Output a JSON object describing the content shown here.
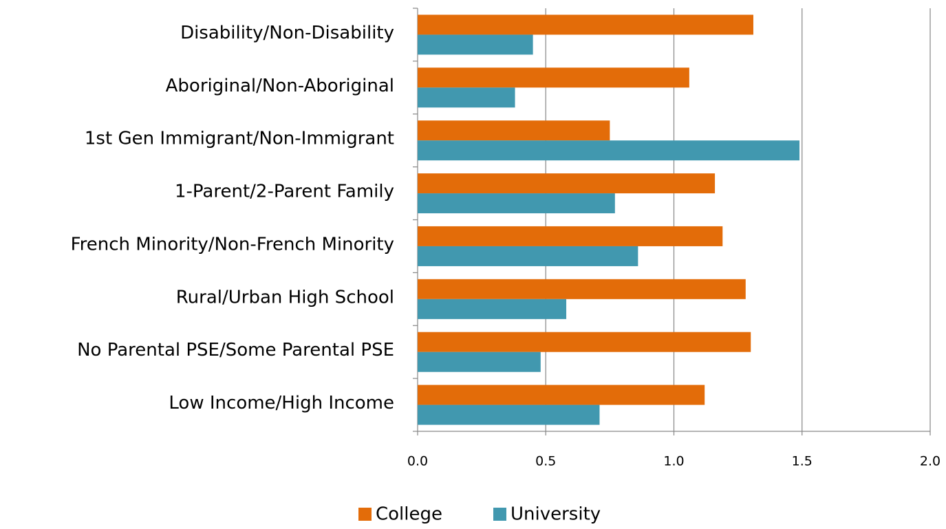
{
  "chart_data": {
    "type": "barh",
    "categories": [
      "Disability/Non-Disability",
      "Aboriginal/Non-Aboriginal",
      "1st Gen Immigrant/Non-Immigrant",
      "1-Parent/2-Parent Family",
      "French Minority/Non-French Minority",
      "Rural/Urban High School",
      "No Parental PSE/Some Parental PSE",
      "Low Income/High Income"
    ],
    "series": [
      {
        "name": "College",
        "color": "#e36c09",
        "values": [
          1.31,
          1.06,
          0.75,
          1.16,
          1.19,
          1.28,
          1.3,
          1.12
        ]
      },
      {
        "name": "University",
        "color": "#4198af",
        "values": [
          0.45,
          0.38,
          1.49,
          0.77,
          0.86,
          0.58,
          0.48,
          0.71
        ]
      }
    ],
    "xlim": [
      0,
      2
    ],
    "xticks": [
      {
        "value": 0,
        "label": "0.0"
      },
      0.5,
      {
        "value": 1,
        "label": "1.0"
      },
      1.5,
      {
        "value": 2,
        "label": "2.0"
      }
    ],
    "grid": true,
    "legend": "bottom"
  }
}
